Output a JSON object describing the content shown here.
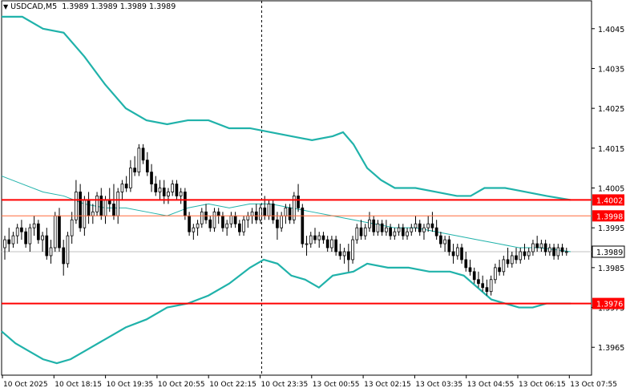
{
  "header": {
    "menu_icon": "triangle-down-icon",
    "symbol": "USDCAD,M5",
    "ohlc": "1.3989 1.3989 1.3989 1.3989"
  },
  "colors": {
    "background": "#ffffff",
    "candle": "#000000",
    "bands": "#20b2aa",
    "middle_band": "#20b2aa",
    "level_line": "#ff0000",
    "level_line_thin": "#ff6a3a",
    "price_label_bg": "#ff0000",
    "current_label_bg": "#ffffff",
    "crosshair": "#000000"
  },
  "chart_data": {
    "type": "candlestick",
    "title": "USDCAD,M5",
    "ylim": [
      1.3958,
      1.4052
    ],
    "y_ticks": [
      "1.4045",
      "1.4035",
      "1.4025",
      "1.4015",
      "1.4005",
      "1.3995",
      "1.3985",
      "1.3975",
      "1.3965"
    ],
    "x_ticks": [
      "10 Oct 2025",
      "10 Oct 18:15",
      "10 Oct 19:35",
      "10 Oct 20:55",
      "10 Oct 22:15",
      "10 Oct 23:35",
      "13 Oct 00:55",
      "13 Oct 02:15",
      "13 Oct 03:35",
      "13 Oct 04:55",
      "13 Oct 06:15",
      "13 Oct 07:55"
    ],
    "current_price": {
      "value": 1.3989,
      "label": "1.3989"
    },
    "levels": [
      {
        "value": 1.4002,
        "label": "1.4002",
        "style": "thick"
      },
      {
        "value": 1.3998,
        "label": "1.3998",
        "style": "thin"
      },
      {
        "value": 1.3976,
        "label": "1.3976",
        "style": "thick"
      }
    ],
    "crosshair_x_tick": "10 Oct 23:35",
    "series": [
      {
        "kind": "bollinger_upper",
        "points": [
          [
            0,
            1.4048
          ],
          [
            6,
            1.4048
          ],
          [
            12,
            1.4045
          ],
          [
            18,
            1.4044
          ],
          [
            24,
            1.4038
          ],
          [
            30,
            1.4031
          ],
          [
            36,
            1.4025
          ],
          [
            42,
            1.4022
          ],
          [
            48,
            1.4021
          ],
          [
            54,
            1.4022
          ],
          [
            60,
            1.4022
          ],
          [
            66,
            1.402
          ],
          [
            72,
            1.402
          ],
          [
            78,
            1.4019
          ],
          [
            84,
            1.4018
          ],
          [
            90,
            1.4017
          ],
          [
            96,
            1.4018
          ],
          [
            99,
            1.4019
          ],
          [
            102,
            1.4016
          ],
          [
            106,
            1.401
          ],
          [
            110,
            1.4007
          ],
          [
            114,
            1.4005
          ],
          [
            120,
            1.4005
          ],
          [
            126,
            1.4004
          ],
          [
            132,
            1.4003
          ],
          [
            136,
            1.4003
          ],
          [
            140,
            1.4005
          ],
          [
            146,
            1.4005
          ],
          [
            152,
            1.4004
          ],
          [
            158,
            1.4003
          ],
          [
            165,
            1.4002
          ]
        ]
      },
      {
        "kind": "bollinger_middle",
        "points": [
          [
            0,
            1.4008
          ],
          [
            6,
            1.4006
          ],
          [
            12,
            1.4004
          ],
          [
            18,
            1.4003
          ],
          [
            24,
            1.4001
          ],
          [
            30,
            1.4
          ],
          [
            36,
            1.4
          ],
          [
            42,
            1.3999
          ],
          [
            48,
            1.3998
          ],
          [
            54,
            1.4
          ],
          [
            60,
            1.4001
          ],
          [
            66,
            1.4
          ],
          [
            72,
            1.4001
          ],
          [
            78,
            1.4001
          ],
          [
            84,
            1.4
          ],
          [
            90,
            1.3999
          ],
          [
            96,
            1.3998
          ],
          [
            102,
            1.3997
          ],
          [
            108,
            1.3996
          ],
          [
            114,
            1.3995
          ],
          [
            120,
            1.3995
          ],
          [
            126,
            1.3994
          ],
          [
            132,
            1.3993
          ],
          [
            138,
            1.3992
          ],
          [
            144,
            1.3991
          ],
          [
            150,
            1.399
          ],
          [
            156,
            1.399
          ],
          [
            165,
            1.3989
          ]
        ]
      },
      {
        "kind": "bollinger_lower",
        "points": [
          [
            0,
            1.3969
          ],
          [
            4,
            1.3966
          ],
          [
            8,
            1.3964
          ],
          [
            12,
            1.3962
          ],
          [
            16,
            1.3961
          ],
          [
            20,
            1.3962
          ],
          [
            24,
            1.3964
          ],
          [
            30,
            1.3967
          ],
          [
            36,
            1.397
          ],
          [
            42,
            1.3972
          ],
          [
            48,
            1.3975
          ],
          [
            54,
            1.3976
          ],
          [
            60,
            1.3978
          ],
          [
            66,
            1.3981
          ],
          [
            72,
            1.3985
          ],
          [
            76,
            1.3987
          ],
          [
            80,
            1.3986
          ],
          [
            84,
            1.3983
          ],
          [
            88,
            1.3982
          ],
          [
            92,
            1.398
          ],
          [
            96,
            1.3983
          ],
          [
            102,
            1.3984
          ],
          [
            106,
            1.3986
          ],
          [
            112,
            1.3985
          ],
          [
            118,
            1.3985
          ],
          [
            124,
            1.3984
          ],
          [
            130,
            1.3984
          ],
          [
            134,
            1.3983
          ],
          [
            138,
            1.398
          ],
          [
            142,
            1.3977
          ],
          [
            146,
            1.3976
          ],
          [
            150,
            1.3975
          ],
          [
            154,
            1.3975
          ],
          [
            158,
            1.3976
          ],
          [
            165,
            1.3976
          ]
        ]
      }
    ],
    "candles": [
      [
        1.399,
        1.3993,
        1.3987,
        1.3992
      ],
      [
        1.3992,
        1.3995,
        1.3989,
        1.3991
      ],
      [
        1.3991,
        1.3994,
        1.399,
        1.3993
      ],
      [
        1.3993,
        1.3996,
        1.3991,
        1.3995
      ],
      [
        1.3995,
        1.3997,
        1.3992,
        1.3994
      ],
      [
        1.3994,
        1.3995,
        1.399,
        1.3991
      ],
      [
        1.3991,
        1.3996,
        1.3989,
        1.3995
      ],
      [
        1.3995,
        1.3998,
        1.3993,
        1.3996
      ],
      [
        1.3996,
        1.3997,
        1.3991,
        1.3992
      ],
      [
        1.3992,
        1.3994,
        1.3989,
        1.3993
      ],
      [
        1.3993,
        1.3995,
        1.3987,
        1.3988
      ],
      [
        1.3988,
        1.3992,
        1.3986,
        1.399
      ],
      [
        1.399,
        1.3999,
        1.3989,
        1.3998
      ],
      [
        1.3998,
        1.4,
        1.3989,
        1.399
      ],
      [
        1.399,
        1.3992,
        1.3983,
        1.3986
      ],
      [
        1.3986,
        1.3994,
        1.3985,
        1.3993
      ],
      [
        1.3993,
        1.3999,
        1.3991,
        1.3997
      ],
      [
        1.3997,
        1.4007,
        1.3996,
        1.4004
      ],
      [
        1.4004,
        1.4006,
        1.3994,
        1.3995
      ],
      [
        1.3995,
        1.4003,
        1.3993,
        1.4002
      ],
      [
        1.4002,
        1.4004,
        1.3996,
        1.3998
      ],
      [
        1.3998,
        1.4001,
        1.3996,
        1.3999
      ],
      [
        1.3999,
        1.4004,
        1.3998,
        1.4003
      ],
      [
        1.4003,
        1.4005,
        1.3997,
        1.3998
      ],
      [
        1.3998,
        1.4003,
        1.3996,
        1.4002
      ],
      [
        1.4002,
        1.4005,
        1.3999,
        1.4001
      ],
      [
        1.4001,
        1.4006,
        1.3997,
        1.3998
      ],
      [
        1.3998,
        1.4005,
        1.3996,
        1.4004
      ],
      [
        1.4004,
        1.4007,
        1.4002,
        1.4006
      ],
      [
        1.4006,
        1.4008,
        1.4004,
        1.4005
      ],
      [
        1.4005,
        1.4012,
        1.4004,
        1.401
      ],
      [
        1.401,
        1.4013,
        1.4008,
        1.4009
      ],
      [
        1.4009,
        1.4016,
        1.4008,
        1.4015
      ],
      [
        1.4015,
        1.4016,
        1.4011,
        1.4012
      ],
      [
        1.4012,
        1.4014,
        1.4008,
        1.4009
      ],
      [
        1.4009,
        1.4011,
        1.4004,
        1.4006
      ],
      [
        1.4006,
        1.4008,
        1.4003,
        1.4004
      ],
      [
        1.4004,
        1.4007,
        1.4002,
        1.4005
      ],
      [
        1.4005,
        1.4007,
        1.4001,
        1.4003
      ],
      [
        1.4003,
        1.4005,
        1.4001,
        1.4004
      ],
      [
        1.4004,
        1.4007,
        1.4003,
        1.4006
      ],
      [
        1.4006,
        1.4007,
        1.4002,
        1.4003
      ],
      [
        1.4003,
        1.4005,
        1.4001,
        1.4004
      ],
      [
        1.4004,
        1.4005,
        1.3997,
        1.3998
      ],
      [
        1.3998,
        1.3999,
        1.3993,
        1.3994
      ],
      [
        1.3994,
        1.3996,
        1.3992,
        1.3995
      ],
      [
        1.3995,
        1.3997,
        1.3993,
        1.3996
      ],
      [
        1.3996,
        1.4,
        1.3995,
        1.3999
      ],
      [
        1.3999,
        1.4001,
        1.3996,
        1.3997
      ],
      [
        1.3997,
        1.3998,
        1.3994,
        1.3995
      ],
      [
        1.3995,
        1.4,
        1.3994,
        1.3999
      ],
      [
        1.3999,
        1.4,
        1.3996,
        1.3998
      ],
      [
        1.3998,
        1.3999,
        1.3994,
        1.3995
      ],
      [
        1.3995,
        1.3997,
        1.3993,
        1.3996
      ],
      [
        1.3996,
        1.3999,
        1.3995,
        1.3998
      ],
      [
        1.3998,
        1.3999,
        1.3995,
        1.3996
      ],
      [
        1.3996,
        1.3997,
        1.3993,
        1.3994
      ],
      [
        1.3994,
        1.3998,
        1.3993,
        1.3997
      ],
      [
        1.3997,
        1.3999,
        1.3995,
        1.3998
      ],
      [
        1.3998,
        1.4,
        1.3996,
        1.3999
      ],
      [
        1.3999,
        1.4001,
        1.3996,
        1.3997
      ],
      [
        1.3997,
        1.4001,
        1.3996,
        1.4
      ],
      [
        1.4,
        1.4003,
        1.3997,
        1.3998
      ],
      [
        1.3998,
        1.4002,
        1.3997,
        1.4001
      ],
      [
        1.4001,
        1.4002,
        1.3996,
        1.3997
      ],
      [
        1.3997,
        1.3999,
        1.3992,
        1.3995
      ],
      [
        1.3995,
        1.3999,
        1.3994,
        1.3998
      ],
      [
        1.3998,
        1.4001,
        1.3996,
        1.4
      ],
      [
        1.4,
        1.4001,
        1.3996,
        1.3997
      ],
      [
        1.3997,
        1.4004,
        1.3996,
        1.4003
      ],
      [
        1.4003,
        1.4006,
        1.3999,
        1.4
      ],
      [
        1.4,
        1.4001,
        1.399,
        1.3991
      ],
      [
        1.3991,
        1.3993,
        1.3988,
        1.3991
      ],
      [
        1.3991,
        1.3994,
        1.399,
        1.3993
      ],
      [
        1.3993,
        1.3995,
        1.3991,
        1.3992
      ],
      [
        1.3992,
        1.3994,
        1.399,
        1.3993
      ],
      [
        1.3993,
        1.3994,
        1.3991,
        1.3992
      ],
      [
        1.3992,
        1.3993,
        1.3989,
        1.399
      ],
      [
        1.399,
        1.3993,
        1.3989,
        1.3992
      ],
      [
        1.3992,
        1.3993,
        1.3988,
        1.3989
      ],
      [
        1.3989,
        1.3991,
        1.3987,
        1.3988
      ],
      [
        1.3988,
        1.399,
        1.3986,
        1.3989
      ],
      [
        1.3989,
        1.3991,
        1.3984,
        1.3987
      ],
      [
        1.3987,
        1.3993,
        1.3986,
        1.3992
      ],
      [
        1.3992,
        1.3996,
        1.3991,
        1.3995
      ],
      [
        1.3995,
        1.3997,
        1.3992,
        1.3993
      ],
      [
        1.3993,
        1.3996,
        1.3992,
        1.3995
      ],
      [
        1.3995,
        1.3999,
        1.3994,
        1.3997
      ],
      [
        1.3997,
        1.3998,
        1.3993,
        1.3994
      ],
      [
        1.3994,
        1.3997,
        1.3993,
        1.3996
      ],
      [
        1.3996,
        1.3997,
        1.3993,
        1.3994
      ],
      [
        1.3994,
        1.3997,
        1.3993,
        1.3995
      ],
      [
        1.3995,
        1.3996,
        1.3992,
        1.3993
      ],
      [
        1.3993,
        1.3995,
        1.3992,
        1.3994
      ],
      [
        1.3994,
        1.3996,
        1.3993,
        1.3995
      ],
      [
        1.3995,
        1.3996,
        1.3992,
        1.3993
      ],
      [
        1.3993,
        1.3995,
        1.3992,
        1.3994
      ],
      [
        1.3994,
        1.3996,
        1.3993,
        1.3995
      ],
      [
        1.3995,
        1.3998,
        1.3994,
        1.3996
      ],
      [
        1.3996,
        1.3997,
        1.3993,
        1.3994
      ],
      [
        1.3994,
        1.3996,
        1.3992,
        1.3995
      ],
      [
        1.3995,
        1.3998,
        1.3994,
        1.3996
      ],
      [
        1.3996,
        1.3999,
        1.3994,
        1.3995
      ],
      [
        1.3995,
        1.3997,
        1.3992,
        1.3993
      ],
      [
        1.3993,
        1.3994,
        1.399,
        1.3991
      ],
      [
        1.3991,
        1.3993,
        1.3989,
        1.3992
      ],
      [
        1.3992,
        1.3993,
        1.3988,
        1.3989
      ],
      [
        1.3989,
        1.3991,
        1.3986,
        1.3988
      ],
      [
        1.3988,
        1.3991,
        1.3987,
        1.399
      ],
      [
        1.399,
        1.3991,
        1.3986,
        1.3987
      ],
      [
        1.3987,
        1.3989,
        1.3984,
        1.3985
      ],
      [
        1.3985,
        1.3987,
        1.3983,
        1.3984
      ],
      [
        1.3984,
        1.3985,
        1.3981,
        1.3982
      ],
      [
        1.3982,
        1.3984,
        1.398,
        1.3981
      ],
      [
        1.3981,
        1.3983,
        1.3979,
        1.398
      ],
      [
        1.398,
        1.3982,
        1.3978,
        1.3979
      ],
      [
        1.3979,
        1.3983,
        1.3978,
        1.3982
      ],
      [
        1.3982,
        1.3986,
        1.3981,
        1.3985
      ],
      [
        1.3985,
        1.3987,
        1.3983,
        1.3984
      ],
      [
        1.3984,
        1.3988,
        1.3983,
        1.3987
      ],
      [
        1.3987,
        1.399,
        1.3985,
        1.3986
      ],
      [
        1.3986,
        1.3989,
        1.3985,
        1.3988
      ],
      [
        1.3988,
        1.399,
        1.3986,
        1.3987
      ],
      [
        1.3987,
        1.399,
        1.3986,
        1.3989
      ],
      [
        1.3989,
        1.3991,
        1.3987,
        1.3988
      ],
      [
        1.3988,
        1.399,
        1.3987,
        1.3989
      ],
      [
        1.3989,
        1.3992,
        1.3988,
        1.3991
      ],
      [
        1.3991,
        1.3993,
        1.3989,
        1.399
      ],
      [
        1.399,
        1.3992,
        1.3989,
        1.3991
      ],
      [
        1.3991,
        1.3992,
        1.3988,
        1.3989
      ],
      [
        1.3989,
        1.3991,
        1.3988,
        1.399
      ],
      [
        1.399,
        1.3991,
        1.3987,
        1.3988
      ],
      [
        1.3988,
        1.3991,
        1.3987,
        1.399
      ],
      [
        1.399,
        1.3991,
        1.3988,
        1.3989
      ],
      [
        1.3989,
        1.399,
        1.3988,
        1.3989
      ]
    ]
  }
}
